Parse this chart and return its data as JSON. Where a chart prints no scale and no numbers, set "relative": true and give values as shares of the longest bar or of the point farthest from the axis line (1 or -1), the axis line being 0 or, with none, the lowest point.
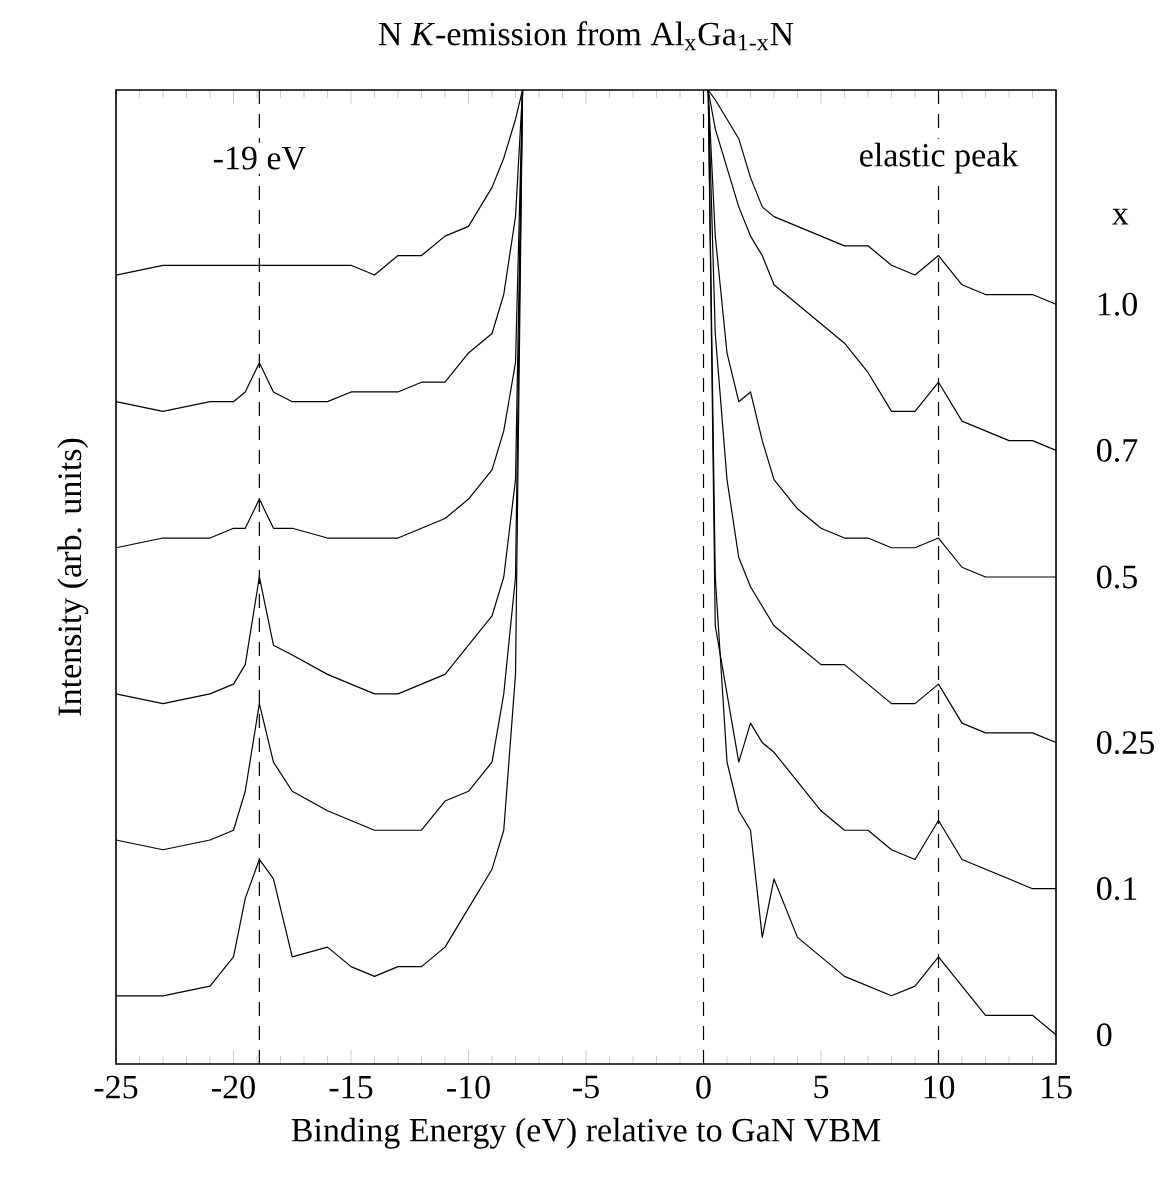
{
  "chart_data": {
    "type": "line",
    "title": "N *K*-emission from Al$_{x}$Ga$_{1-x}$N",
    "xlabel": "Binding Energy (eV) relative to GaN VBM",
    "ylabel": "Intensity (arb. units)",
    "legend_title": "x",
    "relative": true,
    "x": [
      -25,
      -23,
      -21,
      -20,
      -19.5,
      -18.9,
      -18.3,
      -17.5,
      -16,
      -15,
      -14,
      -13,
      -12,
      -11,
      -10,
      -9,
      -8.5,
      -8,
      -7.7,
      -4,
      0.2,
      0.5,
      1,
      1.5,
      2,
      2.5,
      3,
      4,
      5,
      6,
      7,
      8,
      9,
      10,
      11,
      12,
      13,
      14,
      15
    ],
    "xlim": [
      -25,
      15
    ],
    "xticks": [
      -25,
      -20,
      -15,
      -10,
      -5,
      0,
      5,
      10,
      15
    ],
    "series": [
      {
        "name": "1.0",
        "color": "#000000",
        "values": [
          0.81,
          0.82,
          0.82,
          0.82,
          0.82,
          0.82,
          0.82,
          0.82,
          0.82,
          0.82,
          0.81,
          0.83,
          0.83,
          0.85,
          0.86,
          0.9,
          0.93,
          0.97,
          1,
          null,
          1,
          0.99,
          0.97,
          0.95,
          0.91,
          0.88,
          0.87,
          0.86,
          0.85,
          0.84,
          0.84,
          0.82,
          0.81,
          0.83,
          0.8,
          0.79,
          0.79,
          0.79,
          0.78
        ]
      },
      {
        "name": "0.7",
        "color": "#000000",
        "values": [
          0.68,
          0.67,
          0.68,
          0.68,
          0.69,
          0.72,
          0.69,
          0.68,
          0.68,
          0.69,
          0.69,
          0.69,
          0.7,
          0.7,
          0.73,
          0.75,
          0.79,
          0.87,
          1,
          null,
          1,
          0.96,
          0.92,
          0.88,
          0.85,
          0.83,
          0.8,
          0.78,
          0.76,
          0.74,
          0.71,
          0.67,
          0.67,
          0.7,
          0.66,
          0.65,
          0.64,
          0.64,
          0.63
        ]
      },
      {
        "name": "0.5",
        "color": "#000000",
        "values": [
          0.53,
          0.54,
          0.54,
          0.55,
          0.55,
          0.58,
          0.55,
          0.55,
          0.54,
          0.54,
          0.54,
          0.54,
          0.55,
          0.56,
          0.58,
          0.61,
          0.65,
          0.72,
          1,
          null,
          1,
          0.85,
          0.73,
          0.68,
          0.69,
          0.64,
          0.6,
          0.57,
          0.55,
          0.54,
          0.54,
          0.53,
          0.53,
          0.54,
          0.51,
          0.5,
          0.5,
          0.5,
          0.5
        ]
      },
      {
        "name": "0.25",
        "color": "#000000",
        "values": [
          0.38,
          0.37,
          0.38,
          0.39,
          0.41,
          0.5,
          0.43,
          0.42,
          0.4,
          0.39,
          0.38,
          0.38,
          0.39,
          0.4,
          0.43,
          0.46,
          0.5,
          0.6,
          1,
          null,
          1,
          0.75,
          0.6,
          0.52,
          0.49,
          0.47,
          0.45,
          0.43,
          0.41,
          0.41,
          0.39,
          0.37,
          0.37,
          0.39,
          0.35,
          0.34,
          0.34,
          0.34,
          0.33
        ]
      },
      {
        "name": "0.1",
        "color": "#000000",
        "values": [
          0.23,
          0.22,
          0.23,
          0.24,
          0.28,
          0.37,
          0.31,
          0.28,
          0.26,
          0.25,
          0.24,
          0.24,
          0.24,
          0.27,
          0.28,
          0.31,
          0.38,
          0.5,
          1,
          null,
          1,
          0.45,
          0.38,
          0.31,
          0.35,
          0.33,
          0.32,
          0.29,
          0.26,
          0.24,
          0.24,
          0.22,
          0.21,
          0.25,
          0.21,
          0.2,
          0.19,
          0.18,
          0.18
        ]
      },
      {
        "name": "0",
        "color": "#000000",
        "values": [
          0.07,
          0.07,
          0.08,
          0.11,
          0.17,
          0.21,
          0.19,
          0.11,
          0.12,
          0.1,
          0.09,
          0.1,
          0.1,
          0.12,
          0.16,
          0.2,
          0.24,
          0.4,
          1,
          null,
          1,
          0.5,
          0.31,
          0.26,
          0.24,
          0.13,
          0.19,
          0.13,
          0.11,
          0.09,
          0.08,
          0.07,
          0.08,
          0.11,
          0.08,
          0.05,
          0.05,
          0.05,
          0.03
        ]
      }
    ],
    "ref_lines": [
      {
        "axis": "x",
        "value": -18.9,
        "line_style": "dashed",
        "color": "#000000"
      },
      {
        "axis": "x",
        "value": 0,
        "line_style": "dashed",
        "color": "#000000"
      },
      {
        "axis": "x",
        "value": 10,
        "line_style": "dashed",
        "color": "#000000"
      }
    ],
    "annotations": [
      {
        "text": "-19 eV",
        "x": -18.9,
        "y": 0.93
      },
      {
        "text": "elastic peak",
        "x": 10,
        "y": 0.93
      }
    ],
    "grid": false,
    "marker": "none",
    "line_style": "solid"
  }
}
